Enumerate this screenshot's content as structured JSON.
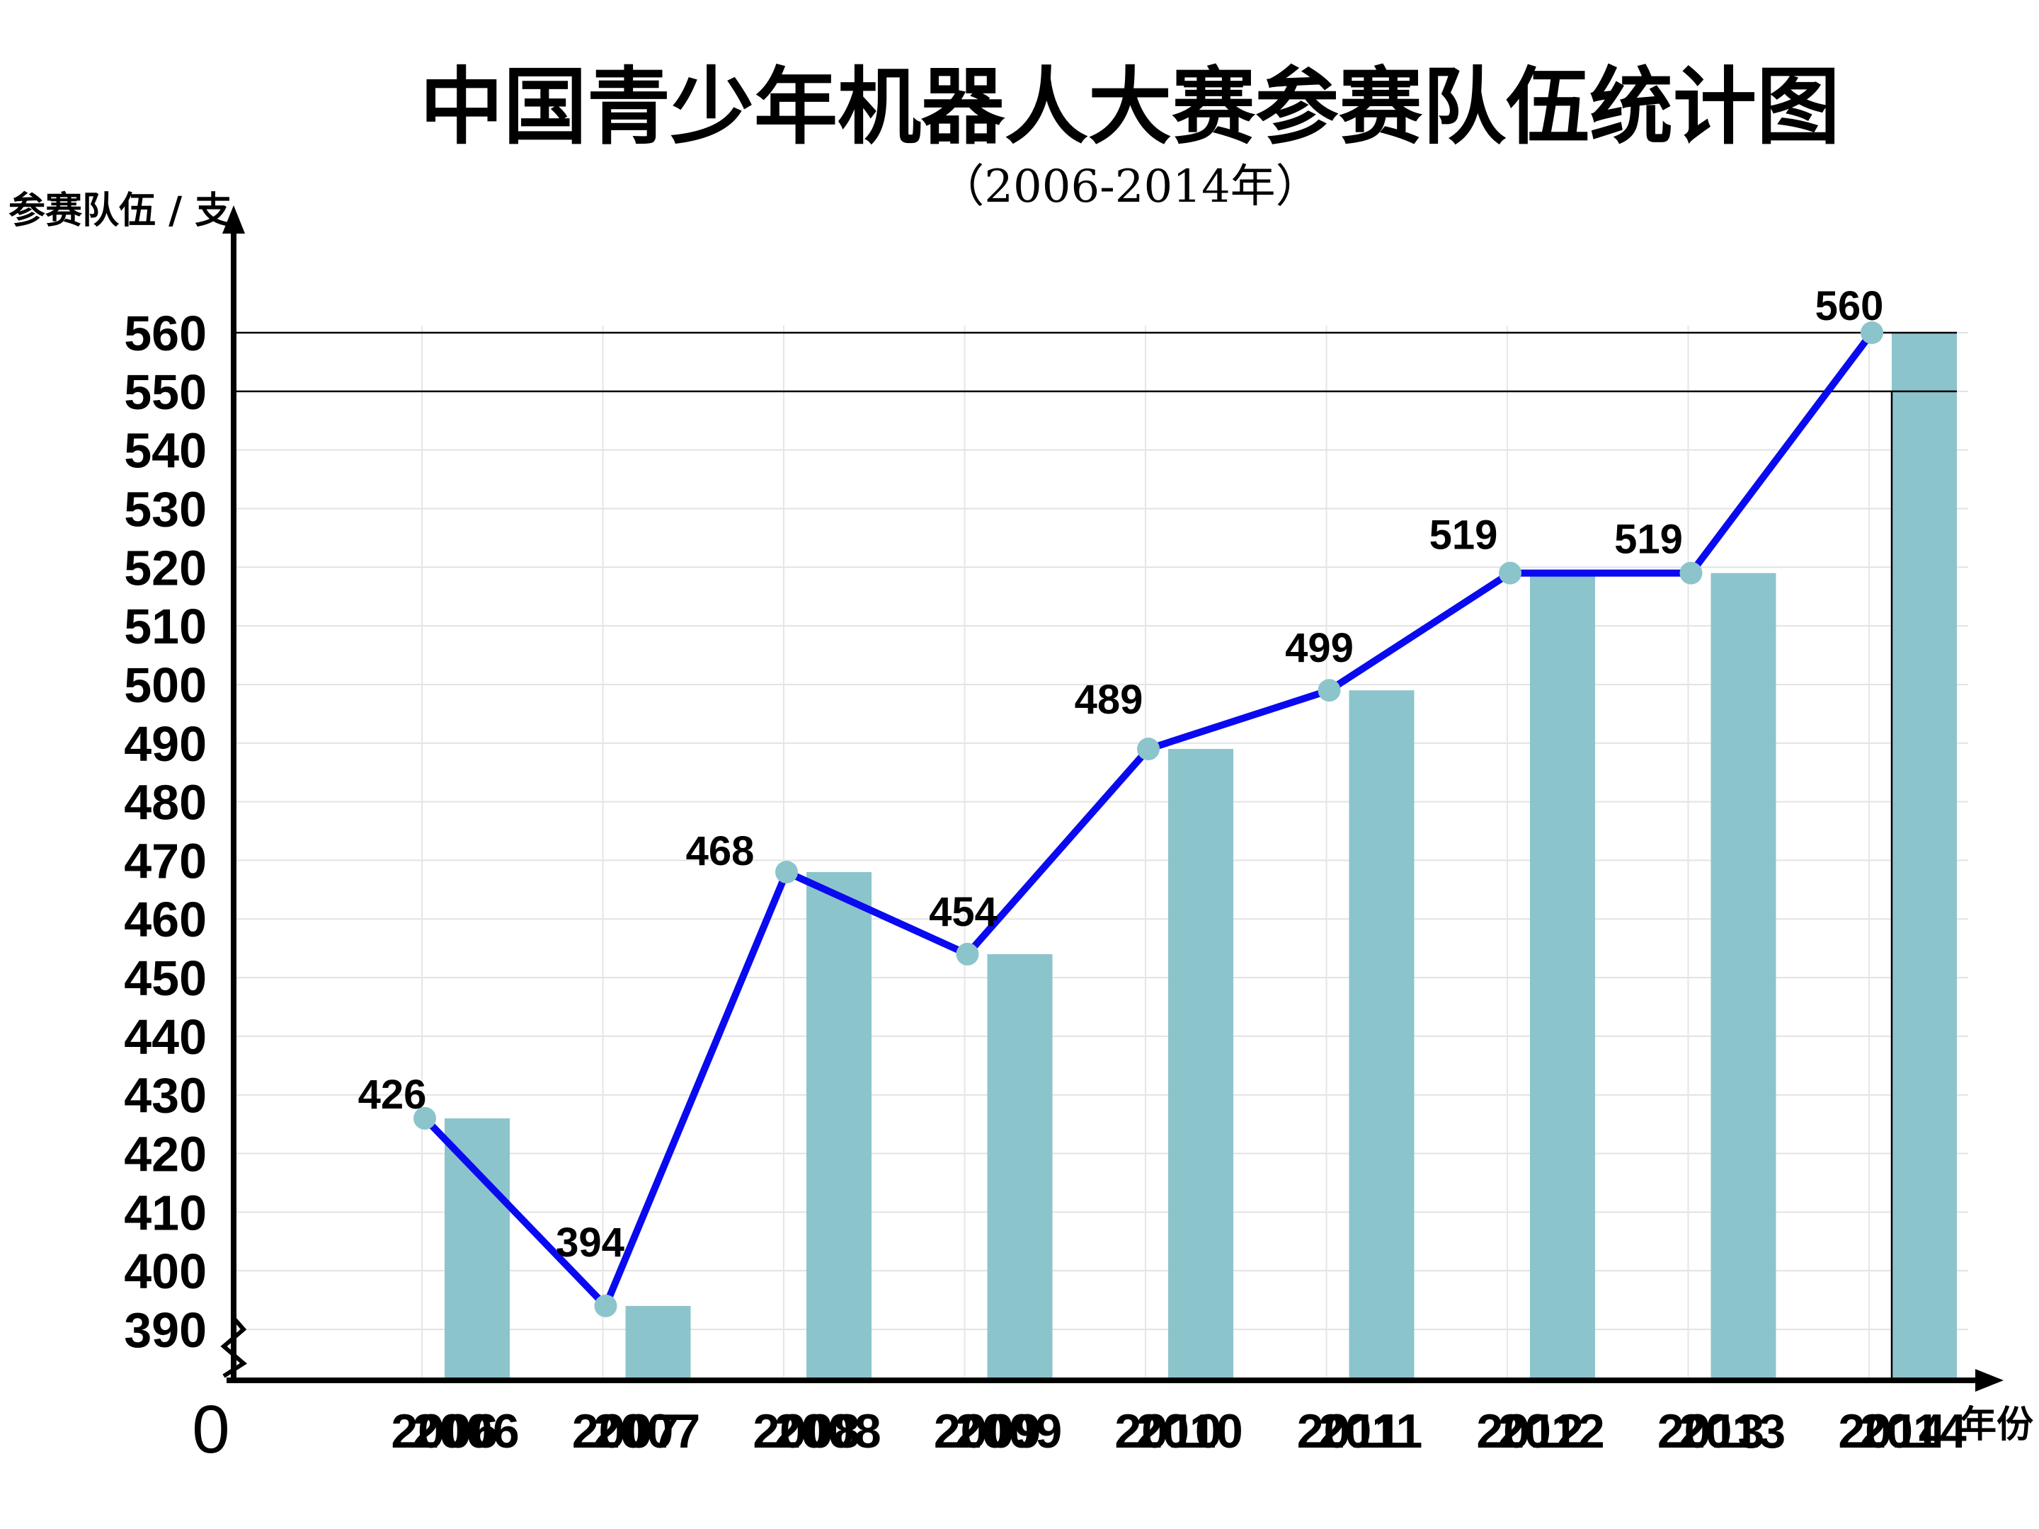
{
  "chart_data": {
    "type": "bar",
    "title": "中国青少年机器人大赛参赛队伍统计图",
    "subtitle": "（2006-2014年）",
    "ylabel": "参赛队伍 / 支",
    "xlabel": "年份",
    "origin_label": "0",
    "categories": [
      "2006",
      "2007",
      "2008",
      "2009",
      "2010",
      "2011",
      "2012",
      "2013",
      "2014"
    ],
    "values": [
      426,
      394,
      468,
      454,
      489,
      499,
      519,
      519,
      560
    ],
    "yticks": [
      390,
      400,
      410,
      420,
      430,
      440,
      450,
      460,
      470,
      480,
      490,
      500,
      510,
      520,
      530,
      540,
      550,
      560
    ],
    "ylim": [
      390,
      560
    ],
    "axis_break": true,
    "grid": true,
    "series": [
      {
        "name": "bars",
        "kind": "bar",
        "color": "#8cc4cc"
      },
      {
        "name": "line",
        "kind": "line",
        "color": "#0a0af0",
        "marker_color": "#8cc4cc"
      }
    ]
  }
}
